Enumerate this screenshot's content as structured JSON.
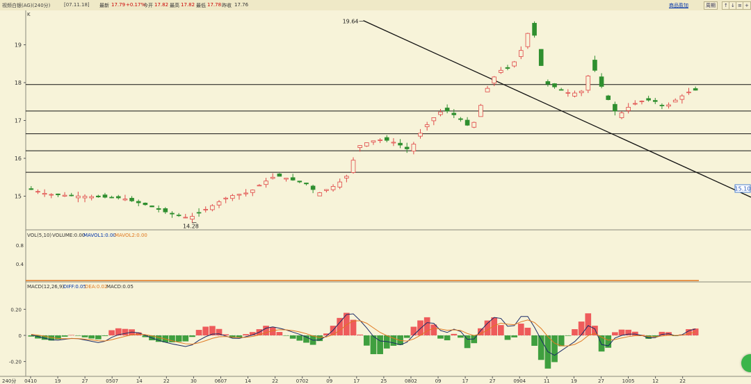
{
  "header": {
    "title": "视频白银(AG)(240分)",
    "date": "[07.11.18]",
    "quotes": [
      {
        "label": "最新",
        "value": "17.79"
      },
      {
        "label": "",
        "value": "+0.17%"
      },
      {
        "label": "今开",
        "value": "17.82"
      },
      {
        "label": "最高",
        "value": "17.82"
      },
      {
        "label": "最低",
        "value": "17.78"
      },
      {
        "label": "昨收",
        "value": "17.76"
      }
    ],
    "right_link": "商品盈加",
    "buttons": [
      "周期",
      "↑",
      "↓",
      "≡",
      "+",
      "-"
    ]
  },
  "chart_data": {
    "type": "candlestick",
    "panel_label": "K",
    "price_axis": {
      "ticks": [
        "19",
        "18",
        "17",
        "16",
        "15"
      ],
      "range": [
        14.0,
        20.0
      ]
    },
    "high_label": "19.64",
    "low_label": "14.28",
    "right_price_tag": "15.10",
    "support_lines": [
      17.95,
      17.25,
      16.65,
      16.2,
      15.63
    ],
    "trendline": {
      "from": [
        49.5,
        19.64
      ],
      "to": [
        99.5,
        15.6
      ]
    },
    "volume": {
      "label": "VOL(5,10)",
      "volume": "VOLUME:0.00",
      "mavol1": "MAVOL1:0.00",
      "mavol2": "MAVOL2:0.00",
      "ticks": [
        "0.8",
        "0.4"
      ]
    },
    "macd": {
      "label": "MACD(12,26,9)",
      "diff": "DIFF:0.05",
      "dea": "DEA:0.02",
      "macd": "MACD:0.05",
      "ticks": [
        "0.20",
        "0",
        "-0.20"
      ],
      "range": [
        -0.3,
        0.4
      ]
    },
    "x_axis": {
      "first": "240分",
      "ticks": [
        "0410",
        "19",
        "27",
        "0507",
        "14",
        "22",
        "30",
        "0607",
        "14",
        "22",
        "0702",
        "09",
        "17",
        "25",
        "0802",
        "09",
        "17",
        "27",
        "0904",
        "11",
        "19",
        "27",
        "1005",
        "12",
        "22"
      ]
    },
    "bars": 100,
    "price_path": [
      [
        0,
        15.2
      ],
      [
        3,
        15.05
      ],
      [
        8,
        15.0
      ],
      [
        14,
        14.95
      ],
      [
        18,
        14.75
      ],
      [
        21,
        14.55
      ],
      [
        24,
        14.42
      ],
      [
        27,
        14.7
      ],
      [
        30,
        15.0
      ],
      [
        33,
        15.1
      ],
      [
        35,
        15.35
      ],
      [
        37,
        15.55
      ],
      [
        39,
        15.45
      ],
      [
        42,
        15.3
      ],
      [
        43,
        15.05
      ],
      [
        46,
        15.3
      ],
      [
        48,
        15.6
      ],
      [
        49,
        16.3
      ],
      [
        51,
        16.45
      ],
      [
        53,
        16.5
      ],
      [
        55,
        16.4
      ],
      [
        57,
        16.2
      ],
      [
        58,
        16.55
      ],
      [
        60,
        17.0
      ],
      [
        62,
        17.3
      ],
      [
        64,
        17.1
      ],
      [
        66,
        16.8
      ],
      [
        67,
        17.1
      ],
      [
        68,
        17.7
      ],
      [
        70,
        18.3
      ],
      [
        72,
        18.4
      ],
      [
        74,
        19.0
      ],
      [
        75,
        19.6
      ],
      [
        76,
        18.9
      ],
      [
        77,
        18.0
      ],
      [
        79,
        17.85
      ],
      [
        81,
        17.7
      ],
      [
        83,
        17.8
      ],
      [
        84,
        18.55
      ],
      [
        85,
        18.1
      ],
      [
        86,
        17.7
      ],
      [
        88,
        17.1
      ],
      [
        89,
        17.3
      ],
      [
        91,
        17.5
      ],
      [
        93,
        17.55
      ],
      [
        95,
        17.35
      ],
      [
        97,
        17.6
      ],
      [
        99,
        17.8
      ]
    ],
    "macd_path": [
      [
        0,
        0.01
      ],
      [
        4,
        -0.04
      ],
      [
        7,
        -0.02
      ],
      [
        11,
        -0.06
      ],
      [
        13,
        0.0
      ],
      [
        16,
        0.03
      ],
      [
        19,
        -0.03
      ],
      [
        21,
        -0.06
      ],
      [
        24,
        -0.09
      ],
      [
        26,
        -0.02
      ],
      [
        28,
        0.02
      ],
      [
        31,
        -0.03
      ],
      [
        34,
        0.01
      ],
      [
        36,
        0.07
      ],
      [
        38,
        0.05
      ],
      [
        41,
        0.0
      ],
      [
        43,
        -0.05
      ],
      [
        45,
        0.01
      ],
      [
        48,
        0.19
      ],
      [
        50,
        0.09
      ],
      [
        52,
        -0.04
      ],
      [
        54,
        -0.05
      ],
      [
        56,
        -0.08
      ],
      [
        58,
        0.03
      ],
      [
        60,
        0.12
      ],
      [
        62,
        0.01
      ],
      [
        64,
        0.06
      ],
      [
        66,
        -0.06
      ],
      [
        68,
        0.07
      ],
      [
        70,
        0.16
      ],
      [
        72,
        0.04
      ],
      [
        74,
        0.18
      ],
      [
        75,
        0.11
      ],
      [
        77,
        -0.08
      ],
      [
        78,
        -0.17
      ],
      [
        80,
        -0.1
      ],
      [
        82,
        -0.03
      ],
      [
        84,
        0.11
      ],
      [
        86,
        -0.13
      ],
      [
        87,
        -0.03
      ],
      [
        89,
        0.01
      ],
      [
        91,
        0.01
      ],
      [
        93,
        -0.03
      ],
      [
        95,
        0.02
      ],
      [
        97,
        -0.01
      ],
      [
        99,
        0.05
      ]
    ]
  }
}
